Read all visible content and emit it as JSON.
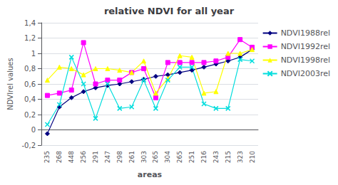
{
  "chart_data": {
    "type": "line",
    "title": "relative NDVI for all year",
    "x_label": "areas",
    "y_label": "NDVIrel values",
    "categories": [
      "235",
      "268",
      "448",
      "256",
      "291",
      "247",
      "298",
      "261",
      "303",
      "265",
      "304",
      "265",
      "251",
      "216",
      "243",
      "215",
      "323",
      "210"
    ],
    "series": [
      {
        "name": "NDVI1988rel",
        "color": "#000080",
        "marker": "diamond",
        "values": [
          -0.05,
          0.3,
          0.42,
          0.5,
          0.55,
          0.58,
          0.6,
          0.63,
          0.66,
          0.7,
          0.72,
          0.75,
          0.78,
          0.82,
          0.86,
          0.9,
          0.95,
          1.05
        ]
      },
      {
        "name": "NDVI1992rel",
        "color": "#FF00FF",
        "marker": "square",
        "values": [
          0.45,
          0.48,
          0.52,
          1.14,
          0.6,
          0.65,
          0.65,
          0.75,
          0.8,
          0.42,
          0.88,
          0.88,
          0.88,
          0.88,
          0.9,
          0.95,
          1.18,
          1.08
        ]
      },
      {
        "name": "NDVI1998rel",
        "color": "#FFFF00",
        "marker": "triangle",
        "values": [
          0.65,
          0.82,
          0.8,
          0.72,
          0.8,
          0.8,
          0.78,
          0.75,
          0.9,
          0.48,
          0.67,
          0.97,
          0.95,
          0.48,
          0.5,
          1.0,
          1.0,
          1.05
        ]
      },
      {
        "name": "NDVI2003rel",
        "color": "#00DDDD",
        "marker": "x",
        "values": [
          0.07,
          0.33,
          0.95,
          0.6,
          0.15,
          0.6,
          0.28,
          0.3,
          0.65,
          0.28,
          0.65,
          0.82,
          0.82,
          0.34,
          0.28,
          0.28,
          0.92,
          0.9
        ]
      }
    ],
    "ylim": [
      -0.2,
      1.4
    ],
    "yticks": [
      {
        "value": -0.2,
        "label": "-0,2"
      },
      0,
      {
        "value": 0.2,
        "label": "0,2"
      },
      {
        "value": 0.4,
        "label": "0,4"
      },
      {
        "value": 0.6,
        "label": "0,6"
      },
      {
        "value": 0.8,
        "label": "0,8"
      },
      1,
      {
        "value": 1.2,
        "label": "1,2"
      },
      {
        "value": 1.4,
        "label": "1,4"
      }
    ],
    "grid": true,
    "legend": "right"
  }
}
